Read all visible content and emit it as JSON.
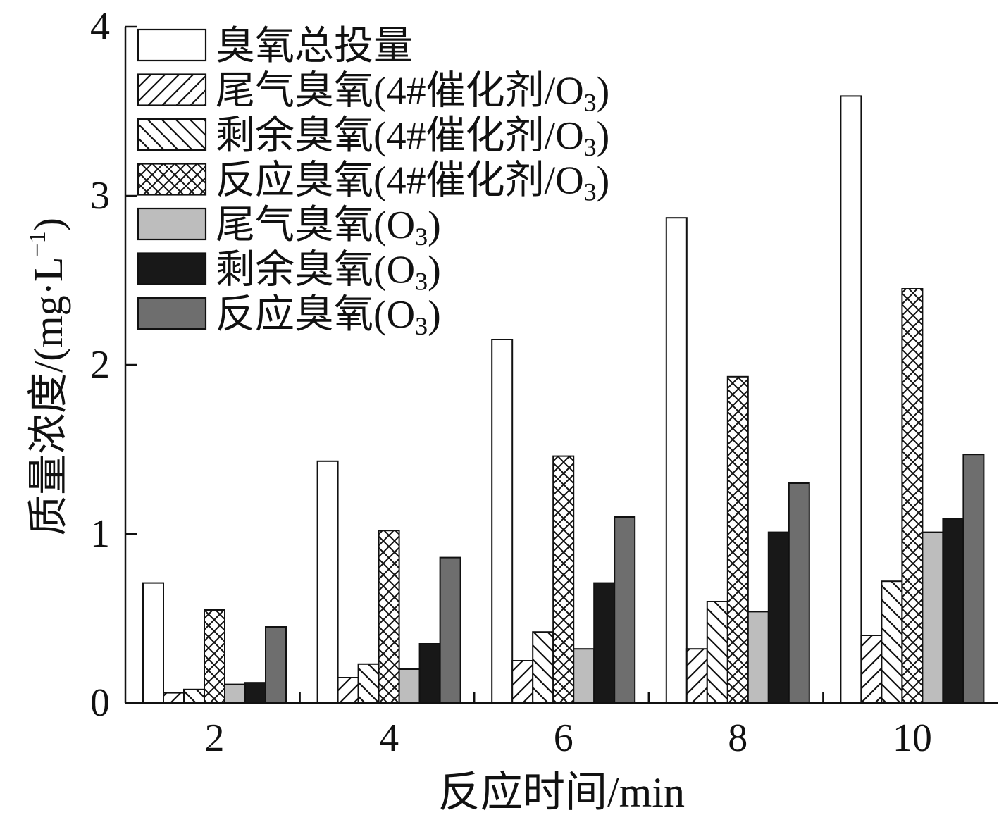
{
  "chart_data": {
    "type": "bar",
    "title": "",
    "xlabel": "反应时间/min",
    "ylabel": "质量浓度/(mg·L",
    "ylabel_sup": "−1",
    "ylabel_close": ")",
    "ylim": [
      0,
      4
    ],
    "yticks": [
      "0",
      "1",
      "2",
      "3",
      "4"
    ],
    "categories": [
      "2",
      "4",
      "6",
      "8",
      "10"
    ],
    "legend_position": "top-left",
    "series": [
      {
        "name": "臭氧总投量",
        "legend_main": "臭氧总投量",
        "legend_sub": "",
        "legend_tail": "",
        "pattern": "empty",
        "values": [
          0.71,
          1.43,
          2.15,
          2.87,
          3.59
        ]
      },
      {
        "name": "尾气臭氧(4#催化剂/O3)",
        "legend_main": "尾气臭氧(4#催化剂/O",
        "legend_sub": "3",
        "legend_tail": ")",
        "pattern": "fwd",
        "values": [
          0.06,
          0.15,
          0.25,
          0.32,
          0.4
        ]
      },
      {
        "name": "剩余臭氧(4#催化剂/O3)",
        "legend_main": "剩余臭氧(4#催化剂/O",
        "legend_sub": "3",
        "legend_tail": ")",
        "pattern": "back",
        "values": [
          0.08,
          0.23,
          0.42,
          0.6,
          0.72
        ]
      },
      {
        "name": "反应臭氧(4#催化剂/O3)",
        "legend_main": "反应臭氧(4#催化剂/O",
        "legend_sub": "3",
        "legend_tail": ")",
        "pattern": "cross",
        "values": [
          0.55,
          1.02,
          1.46,
          1.93,
          2.45
        ]
      },
      {
        "name": "尾气臭氧(O3)",
        "legend_main": "尾气臭氧(O",
        "legend_sub": "3",
        "legend_tail": ")",
        "pattern": "lightgray",
        "values": [
          0.11,
          0.2,
          0.32,
          0.54,
          1.01
        ]
      },
      {
        "name": "剩余臭氧(O3)",
        "legend_main": "剩余臭氧(O",
        "legend_sub": "3",
        "legend_tail": ")",
        "pattern": "black",
        "values": [
          0.12,
          0.35,
          0.71,
          1.01,
          1.09
        ]
      },
      {
        "name": "反应臭氧(O3)",
        "legend_main": "反应臭氧(O",
        "legend_sub": "3",
        "legend_tail": ")",
        "pattern": "darkgray",
        "values": [
          0.45,
          0.86,
          1.1,
          1.3,
          1.47
        ]
      }
    ],
    "colors": {
      "lightgray": "#bdbdbd",
      "black": "#181818",
      "darkgray": "#6e6e6e",
      "empty": "#ffffff",
      "stroke": "#111111"
    }
  }
}
